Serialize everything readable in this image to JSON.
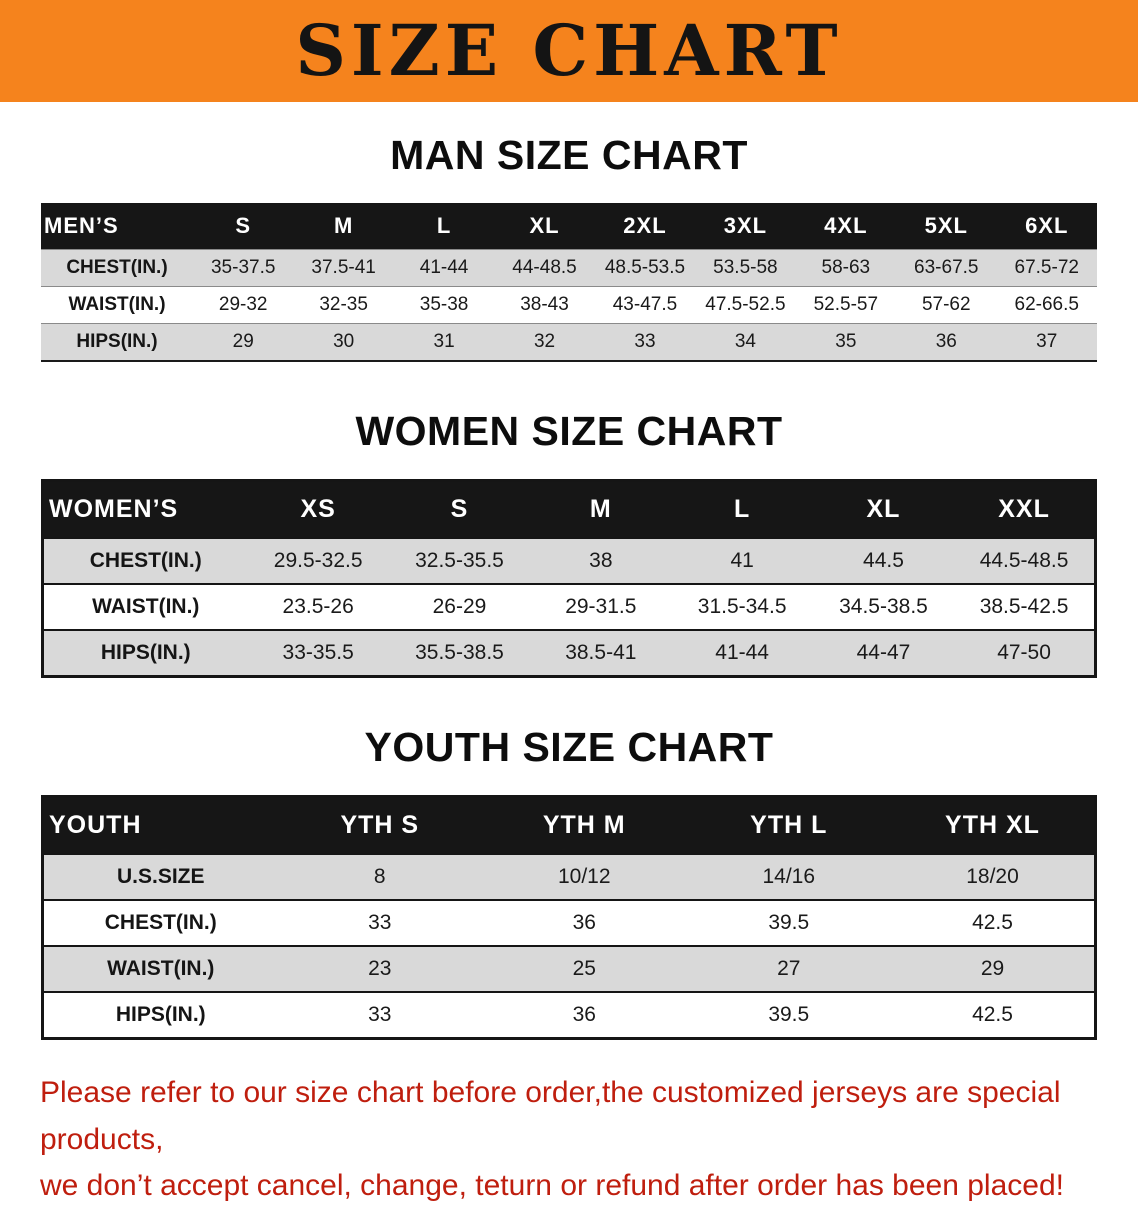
{
  "colors": {
    "banner_bg": "#f5831d",
    "table_header_bg": "#161616",
    "row_stripe": "#d9d9d9",
    "disclaimer_red": "#bf1e0e"
  },
  "banner": {
    "title": "SIZE CHART"
  },
  "sections": {
    "men": {
      "heading": "MAN SIZE CHART",
      "table": {
        "header": [
          "MEN’S",
          "S",
          "M",
          "L",
          "XL",
          "2XL",
          "3XL",
          "4XL",
          "5XL",
          "6XL"
        ],
        "rows": [
          [
            "CHEST(IN.)",
            "35-37.5",
            "37.5-41",
            "41-44",
            "44-48.5",
            "48.5-53.5",
            "53.5-58",
            "58-63",
            "63-67.5",
            "67.5-72"
          ],
          [
            "WAIST(IN.)",
            "29-32",
            "32-35",
            "35-38",
            "38-43",
            "43-47.5",
            "47.5-52.5",
            "52.5-57",
            "57-62",
            "62-66.5"
          ],
          [
            "HIPS(IN.)",
            "29",
            "30",
            "31",
            "32",
            "33",
            "34",
            "35",
            "36",
            "37"
          ]
        ]
      }
    },
    "women": {
      "heading": "WOMEN SIZE CHART",
      "table": {
        "header": [
          "WOMEN’S",
          "XS",
          "S",
          "M",
          "L",
          "XL",
          "XXL"
        ],
        "rows": [
          [
            "CHEST(IN.)",
            "29.5-32.5",
            "32.5-35.5",
            "38",
            "41",
            "44.5",
            "44.5-48.5"
          ],
          [
            "WAIST(IN.)",
            "23.5-26",
            "26-29",
            "29-31.5",
            "31.5-34.5",
            "34.5-38.5",
            "38.5-42.5"
          ],
          [
            "HIPS(IN.)",
            "33-35.5",
            "35.5-38.5",
            "38.5-41",
            "41-44",
            "44-47",
            "47-50"
          ]
        ]
      }
    },
    "youth": {
      "heading": "YOUTH SIZE CHART",
      "table": {
        "header": [
          "YOUTH",
          "YTH S",
          "YTH M",
          "YTH L",
          "YTH XL"
        ],
        "rows": [
          [
            "U.S.SIZE",
            "8",
            "10/12",
            "14/16",
            "18/20"
          ],
          [
            "CHEST(IN.)",
            "33",
            "36",
            "39.5",
            "42.5"
          ],
          [
            "WAIST(IN.)",
            "23",
            "25",
            "27",
            "29"
          ],
          [
            "HIPS(IN.)",
            "33",
            "36",
            "39.5",
            "42.5"
          ]
        ]
      }
    }
  },
  "disclaimer": {
    "line1": "Please refer to our size chart before order,the customized jerseys are special products,",
    "line2": "we don’t accept cancel, change, teturn or refund after order has been placed!"
  }
}
